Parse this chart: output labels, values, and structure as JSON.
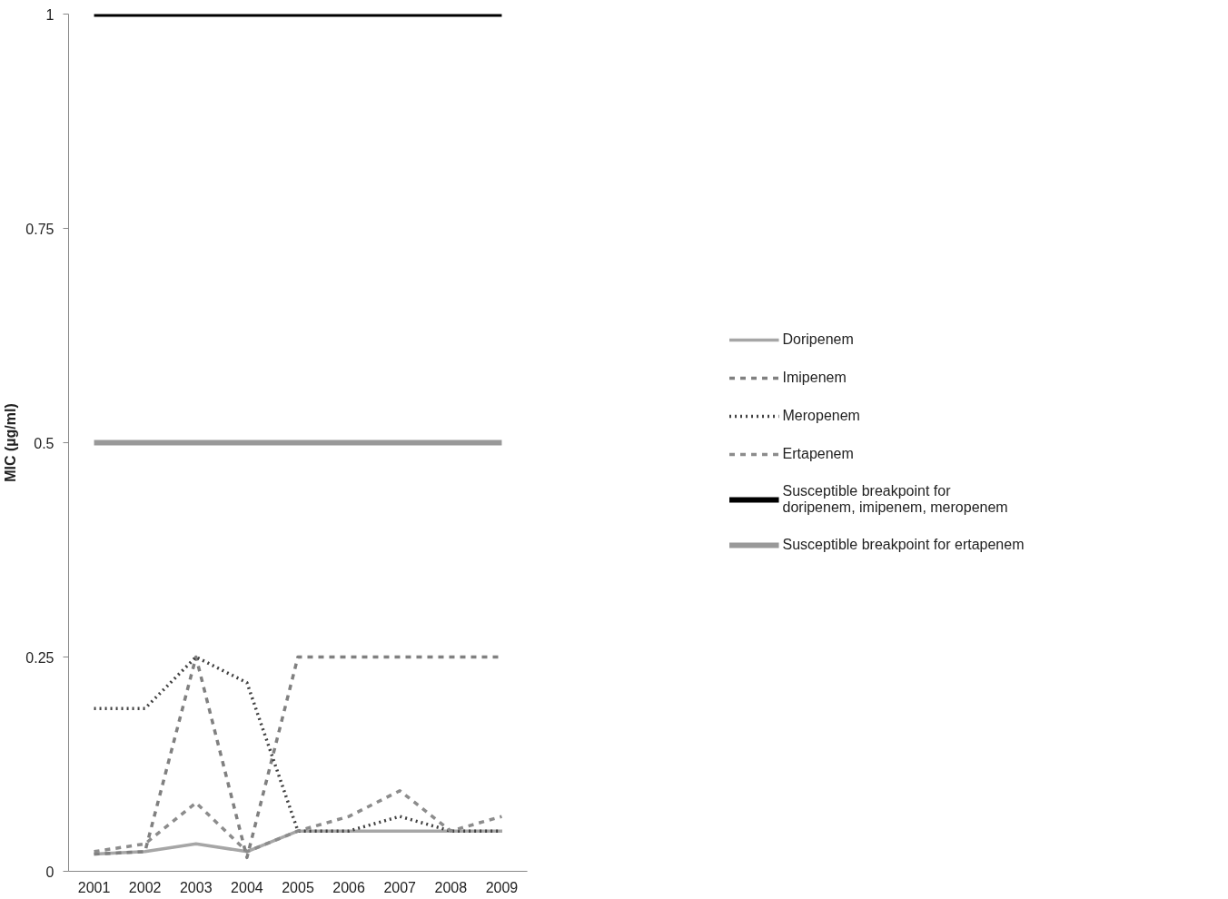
{
  "chart_data": {
    "type": "line",
    "ylabel": "MIC (µg/ml)",
    "categories": [
      "2001",
      "2002",
      "2003",
      "2004",
      "2005",
      "2006",
      "2007",
      "2008",
      "2009"
    ],
    "series": [
      {
        "name": "Doripenem",
        "color": "#a6a6a6",
        "line_style": "solid",
        "values": [
          0.02,
          0.023,
          0.032,
          0.023,
          0.047,
          0.047,
          0.047,
          0.047,
          0.047
        ]
      },
      {
        "name": "Imipenem",
        "color": "#808080",
        "line_style": "dashed",
        "values": [
          0.02,
          0.023,
          0.25,
          0.016,
          0.25,
          0.25,
          0.25,
          0.25,
          0.25
        ]
      },
      {
        "name": "Meropenem",
        "color": "#404040",
        "line_style": "dotted",
        "values": [
          0.19,
          0.19,
          0.25,
          0.22,
          0.047,
          0.047,
          0.064,
          0.047,
          0.047
        ]
      },
      {
        "name": "Ertapenem",
        "color": "#8c8c8c",
        "line_style": "dashed",
        "values": [
          0.023,
          0.032,
          0.08,
          0.023,
          0.047,
          0.064,
          0.094,
          0.047,
          0.064
        ]
      }
    ],
    "ref_lines": [
      {
        "axis": "y",
        "value": 1,
        "label": "Susceptible breakpoint for doripenem, imipenem, meropenem",
        "color": "#000000"
      },
      {
        "axis": "y",
        "value": 0.5,
        "label": "Susceptible breakpoint for ertapenem",
        "color": "#999999"
      }
    ],
    "ylim": [
      0,
      1
    ],
    "yticks": [
      0,
      0.25,
      0.5,
      0.75,
      1
    ],
    "grid": false,
    "legend": "right",
    "marker": "none"
  }
}
